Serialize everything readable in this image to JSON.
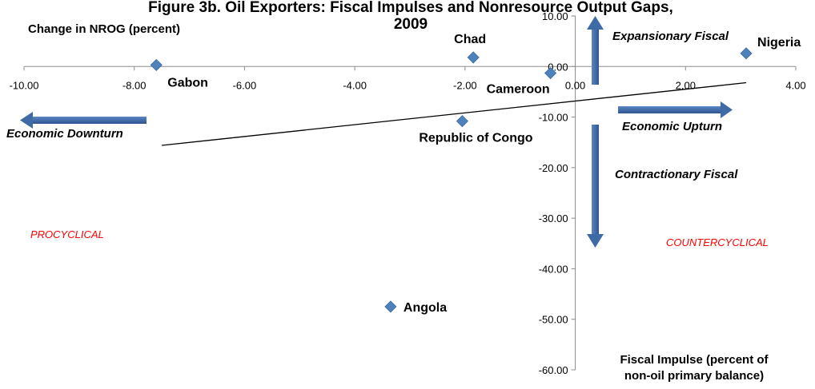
{
  "chart_data": {
    "type": "scatter",
    "title_line1": "Figure 3b. Oil Exporters: Fiscal Impulses and Nonresource Output Gaps,",
    "title_line2": "2009",
    "xlabel": "Change in NROG (percent)",
    "ylabel_line1": "Fiscal Impulse (percent of",
    "ylabel_line2": "non-oil primary balance)",
    "xlim": [
      -10,
      4
    ],
    "ylim": [
      -60,
      10
    ],
    "x_ticks": [
      "-10.00",
      "-8.00",
      "-6.00",
      "-4.00",
      "-2.00",
      "0.00",
      "2.00",
      "4.00"
    ],
    "y_ticks": [
      "10.00",
      "0.00",
      "-10.00",
      "-20.00",
      "-30.00",
      "-40.00",
      "-50.00",
      "-60.00"
    ],
    "points": [
      {
        "label": "Gabon",
        "x": -7.6,
        "y": 0.3
      },
      {
        "label": "Chad",
        "x": -1.85,
        "y": 1.8
      },
      {
        "label": "Cameroon",
        "x": -0.45,
        "y": -1.3
      },
      {
        "label": "Nigeria",
        "x": 3.1,
        "y": 2.6
      },
      {
        "label": "Republic of Congo",
        "x": -2.05,
        "y": -10.8
      },
      {
        "label": "Angola",
        "x": -3.35,
        "y": -47.5
      }
    ],
    "trendline": {
      "x": [
        -7.5,
        3.1
      ],
      "y": [
        -15.6,
        -3.2
      ]
    },
    "annotations": {
      "expansionary": "Expansionary Fiscal",
      "contractionary": "Contractionary Fiscal",
      "downturn": "Economic Downturn",
      "upturn": "Economic Upturn",
      "procyclical": "PROCYCLICAL",
      "countercyclical": "COUNTERCYCLICAL"
    },
    "colors": {
      "marker": "#4f81bd",
      "arrow": "#3e6aa6",
      "region_text": "#ff0000"
    }
  }
}
